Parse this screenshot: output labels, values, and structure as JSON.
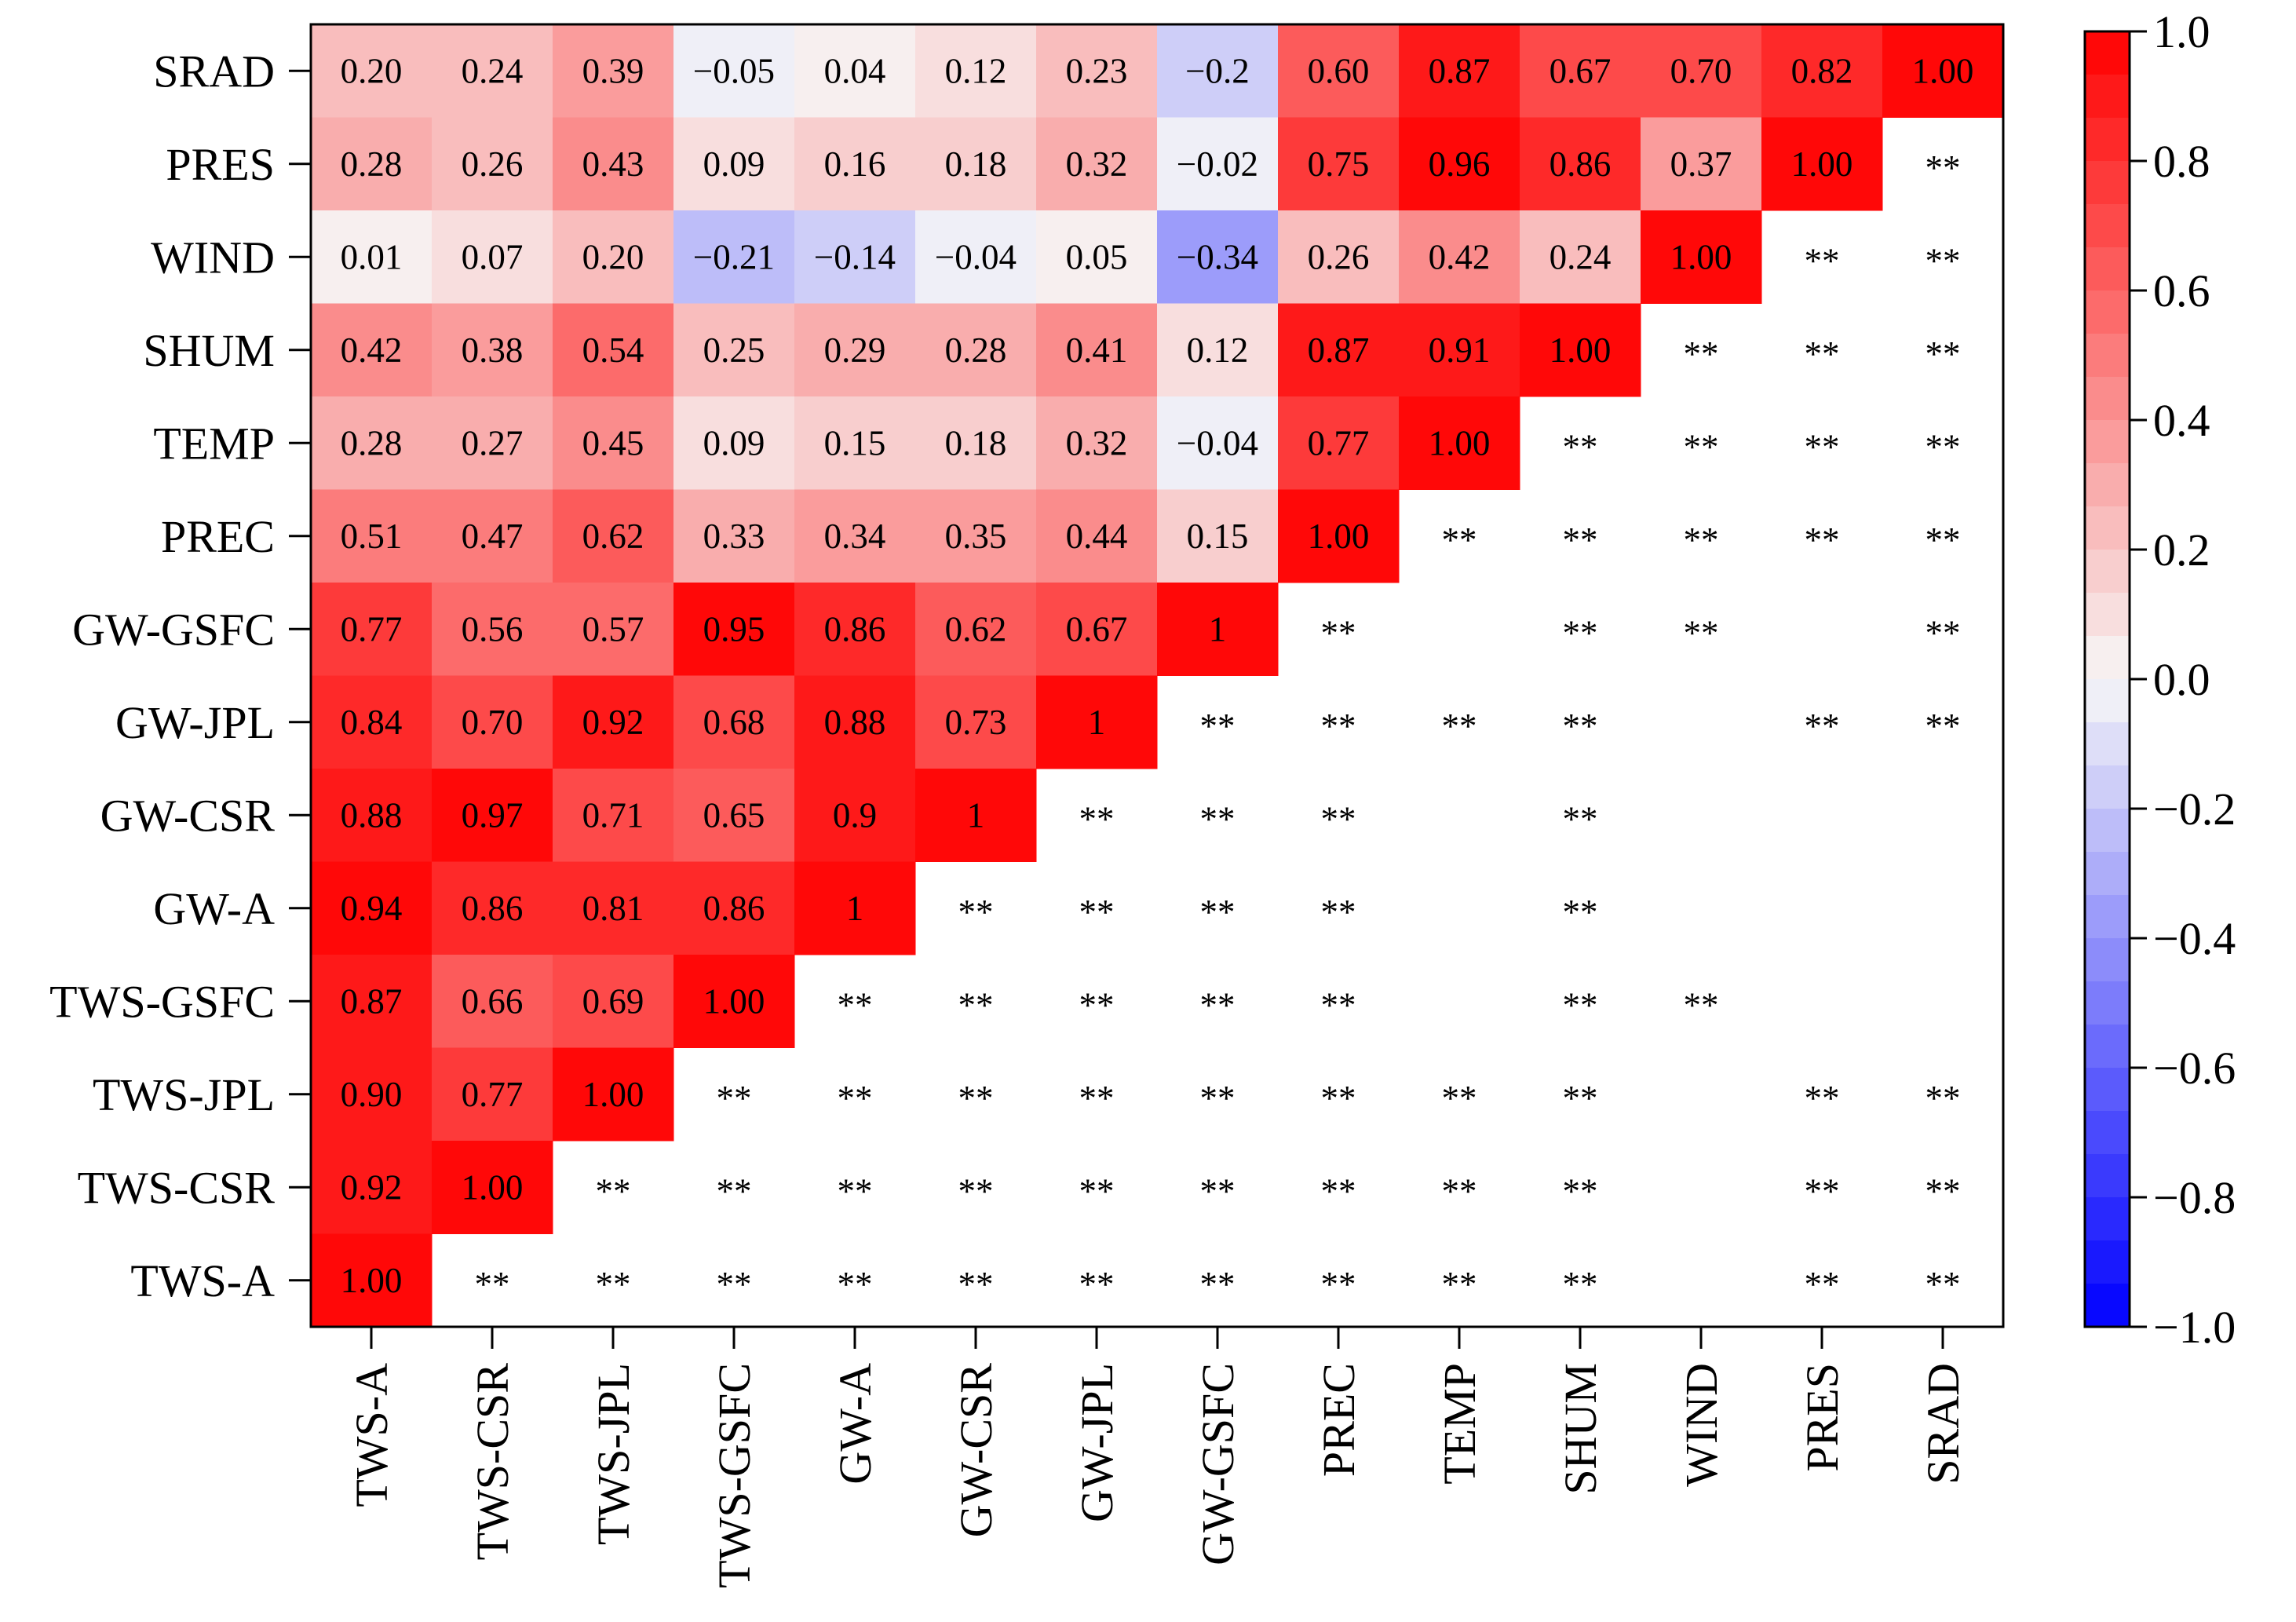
{
  "chart_data": {
    "type": "heatmap",
    "title": "",
    "x_categories": [
      "TWS-A",
      "TWS-CSR",
      "TWS-JPL",
      "TWS-GSFC",
      "GW-A",
      "GW-CSR",
      "GW-JPL",
      "GW-GSFC",
      "PREC",
      "TEMP",
      "SHUM",
      "WIND",
      "PRES",
      "SRAD"
    ],
    "y_categories_top_to_bottom": [
      "SRAD",
      "PRES",
      "WIND",
      "SHUM",
      "TEMP",
      "PREC",
      "GW-GSFC",
      "GW-JPL",
      "GW-CSR",
      "GW-A",
      "TWS-GSFC",
      "TWS-JPL",
      "TWS-CSR",
      "TWS-A"
    ],
    "lower_triangle_values": [
      [
        0.2,
        0.24,
        0.39,
        -0.05,
        0.04,
        0.12,
        0.23,
        -0.2,
        0.6,
        0.87,
        0.67,
        0.7,
        0.82,
        1.0
      ],
      [
        0.28,
        0.26,
        0.43,
        0.09,
        0.16,
        0.18,
        0.32,
        -0.02,
        0.75,
        0.96,
        0.86,
        0.37,
        1.0
      ],
      [
        0.01,
        0.07,
        0.2,
        -0.21,
        -0.14,
        -0.04,
        0.05,
        -0.34,
        0.26,
        0.42,
        0.24,
        1.0
      ],
      [
        0.42,
        0.38,
        0.54,
        0.25,
        0.29,
        0.28,
        0.41,
        0.12,
        0.87,
        0.91,
        1.0
      ],
      [
        0.28,
        0.27,
        0.45,
        0.09,
        0.15,
        0.18,
        0.32,
        -0.04,
        0.77,
        1.0
      ],
      [
        0.51,
        0.47,
        0.62,
        0.33,
        0.34,
        0.35,
        0.44,
        0.15,
        1.0
      ],
      [
        0.77,
        0.56,
        0.57,
        0.95,
        0.86,
        0.62,
        0.67,
        1
      ],
      [
        0.84,
        0.7,
        0.92,
        0.68,
        0.88,
        0.73,
        1
      ],
      [
        0.88,
        0.97,
        0.71,
        0.65,
        0.9,
        1
      ],
      [
        0.94,
        0.86,
        0.81,
        0.86,
        1
      ],
      [
        0.87,
        0.66,
        0.69,
        1.0
      ],
      [
        0.9,
        0.77,
        1.0
      ],
      [
        0.92,
        1.0
      ],
      [
        1.0
      ]
    ],
    "cell_labels": [
      [
        "0.20",
        "0.24",
        "0.39",
        "−0.05",
        "0.04",
        "0.12",
        "0.23",
        "−0.2",
        "0.60",
        "0.87",
        "0.67",
        "0.70",
        "0.82",
        "1.00"
      ],
      [
        "0.28",
        "0.26",
        "0.43",
        "0.09",
        "0.16",
        "0.18",
        "0.32",
        "−0.02",
        "0.75",
        "0.96",
        "0.86",
        "0.37",
        "1.00"
      ],
      [
        "0.01",
        "0.07",
        "0.20",
        "−0.21",
        "−0.14",
        "−0.04",
        "0.05",
        "−0.34",
        "0.26",
        "0.42",
        "0.24",
        "1.00"
      ],
      [
        "0.42",
        "0.38",
        "0.54",
        "0.25",
        "0.29",
        "0.28",
        "0.41",
        "0.12",
        "0.87",
        "0.91",
        "1.00"
      ],
      [
        "0.28",
        "0.27",
        "0.45",
        "0.09",
        "0.15",
        "0.18",
        "0.32",
        "−0.04",
        "0.77",
        "1.00"
      ],
      [
        "0.51",
        "0.47",
        "0.62",
        "0.33",
        "0.34",
        "0.35",
        "0.44",
        "0.15",
        "1.00"
      ],
      [
        "0.77",
        "0.56",
        "0.57",
        "0.95",
        "0.86",
        "0.62",
        "0.67",
        "1"
      ],
      [
        "0.84",
        "0.70",
        "0.92",
        "0.68",
        "0.88",
        "0.73",
        "1"
      ],
      [
        "0.88",
        "0.97",
        "0.71",
        "0.65",
        "0.9",
        "1"
      ],
      [
        "0.94",
        "0.86",
        "0.81",
        "0.86",
        "1"
      ],
      [
        "0.87",
        "0.66",
        "0.69",
        "1.00"
      ],
      [
        "0.90",
        "0.77",
        "1.00"
      ],
      [
        "0.92",
        "1.00"
      ],
      [
        "1.00"
      ]
    ],
    "significance_marker": "**",
    "significance_upper_triangle": [
      [],
      [
        13
      ],
      [
        12,
        13
      ],
      [
        11,
        12,
        13
      ],
      [
        10,
        11,
        12,
        13
      ],
      [
        9,
        10,
        11,
        12,
        13
      ],
      [
        8,
        10,
        11,
        13
      ],
      [
        7,
        8,
        9,
        10,
        12,
        13
      ],
      [
        6,
        7,
        8,
        10
      ],
      [
        5,
        6,
        7,
        8,
        10
      ],
      [
        4,
        5,
        6,
        7,
        8,
        10,
        11
      ],
      [
        3,
        4,
        5,
        6,
        7,
        8,
        9,
        10,
        12,
        13
      ],
      [
        2,
        3,
        4,
        5,
        6,
        7,
        8,
        9,
        10,
        12,
        13
      ],
      [
        1,
        2,
        3,
        4,
        5,
        6,
        7,
        8,
        9,
        10,
        12,
        13
      ]
    ],
    "colorbar": {
      "range": [
        -1.0,
        1.0
      ],
      "ticks": [
        1.0,
        0.8,
        0.6,
        0.4,
        0.2,
        0.0,
        -0.2,
        -0.4,
        -0.6,
        -0.8,
        -1.0
      ],
      "tick_labels": [
        "1.0",
        "0.8",
        "0.6",
        "0.4",
        "0.2",
        "0.0",
        "−0.2",
        "−0.4",
        "−0.6",
        "−0.8",
        "−1.0"
      ],
      "levels": 30,
      "colormap": "bwr",
      "colors": {
        "negative": "#0000ff",
        "neutral": "#f7f7f7",
        "positive": "#ff0000"
      }
    },
    "xlabel": "",
    "ylabel": ""
  }
}
